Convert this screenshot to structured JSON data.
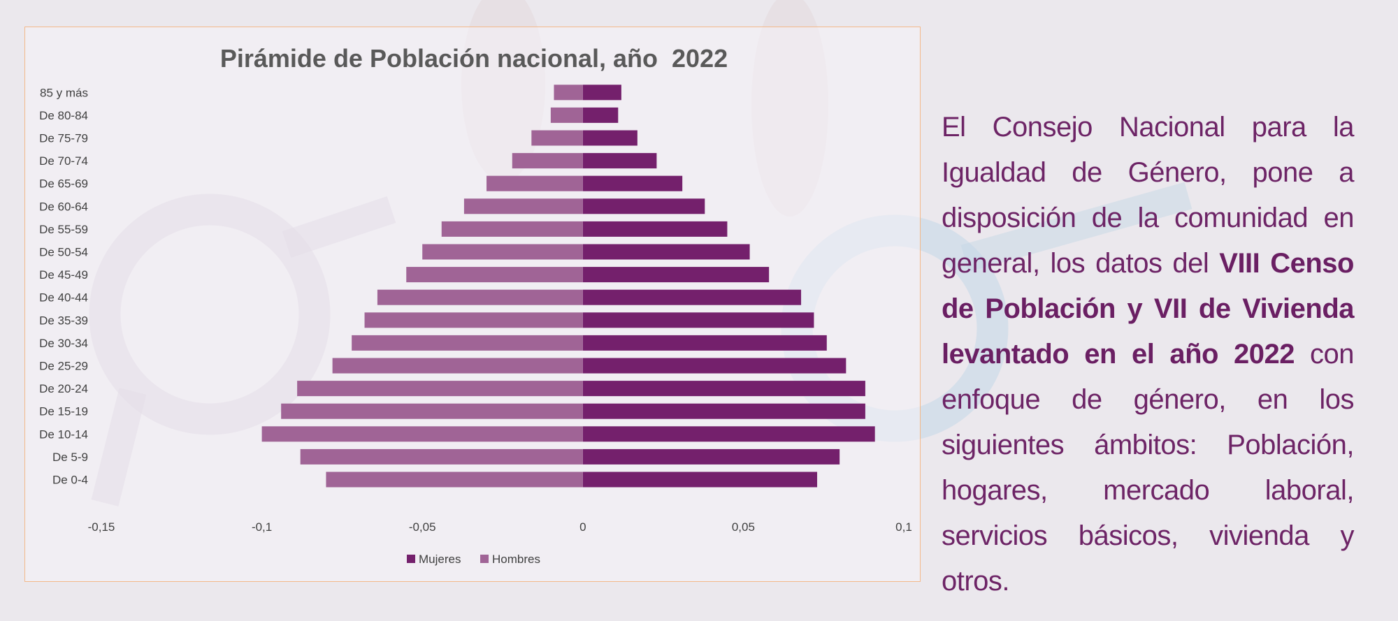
{
  "chart_data": {
    "type": "bar",
    "orientation": "horizontal",
    "title": "Pirámide de Población nacional, año  2022",
    "categories": [
      "85 y más",
      "De 80-84",
      "De 75-79",
      "De 70-74",
      "De 65-69",
      "De 60-64",
      "De 55-59",
      "De 50-54",
      "De 45-49",
      "De 40-44",
      "De 35-39",
      "De 30-34",
      "De 25-29",
      "De 20-24",
      "De 15-19",
      "De 10-14",
      "De 5-9",
      "De 0-4"
    ],
    "series": [
      {
        "name": "Mujeres",
        "color": "#74206c",
        "values": [
          0.012,
          0.011,
          0.017,
          0.023,
          0.031,
          0.038,
          0.045,
          0.052,
          0.058,
          0.068,
          0.072,
          0.076,
          0.082,
          0.088,
          0.088,
          0.091,
          0.08,
          0.073
        ]
      },
      {
        "name": "Hombres",
        "color": "#a06496",
        "values": [
          -0.009,
          -0.01,
          -0.016,
          -0.022,
          -0.03,
          -0.037,
          -0.044,
          -0.05,
          -0.055,
          -0.064,
          -0.068,
          -0.072,
          -0.078,
          -0.089,
          -0.094,
          -0.1,
          -0.088,
          -0.08
        ]
      }
    ],
    "xlim": [
      -0.15,
      0.1
    ],
    "xticks": [
      "-0,15",
      "-0,1",
      "-0,05",
      "0",
      "0,05",
      "0,1"
    ],
    "xtick_values": [
      -0.15,
      -0.1,
      -0.05,
      0,
      0.05,
      0.1
    ],
    "legend_position": "bottom",
    "grid": false
  },
  "text_panel": {
    "intro": "El Consejo Nacional para la Igualdad de Género, pone a disposición de la comunidad en general, los datos del ",
    "highlight": "VIII Censo de Población y VII de Vivienda levantado en el año 2022",
    "rest": " con enfoque de género, en los siguientes ámbitos: Población, hogares, mercado laboral, servicios básicos, vivienda y otros."
  },
  "colors": {
    "accent": "#6d2466",
    "frame_border": "#f3b98a",
    "title": "#595959"
  }
}
